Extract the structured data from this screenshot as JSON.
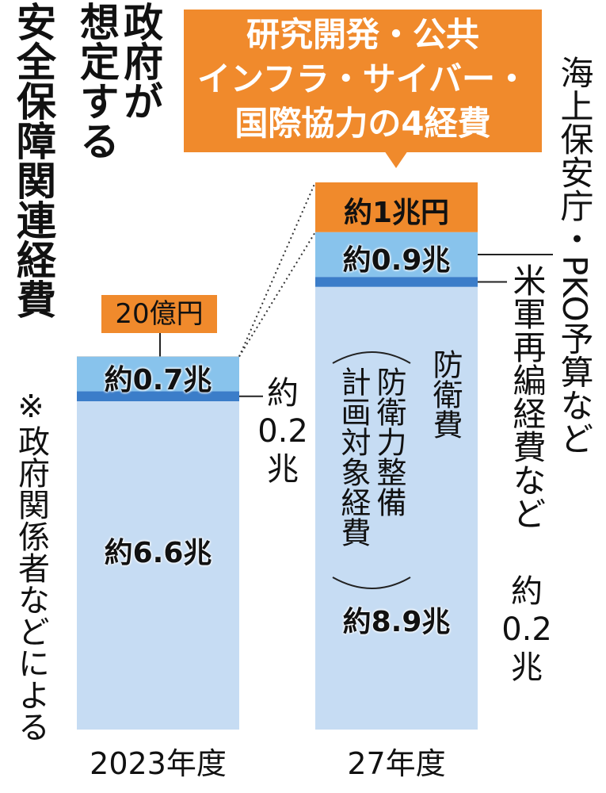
{
  "chart_data": {
    "type": "stacked-bar",
    "title_lines": [
      "政府が",
      "想定する",
      "安全保障関連経費"
    ],
    "source_note": "※政府関係者などによる",
    "categories": [
      "2023年度",
      "27年度"
    ],
    "series": [
      {
        "name": "防衛費",
        "name_note_lines": [
          "防衛力整備",
          "計画対象経費"
        ],
        "color": "#c6dcf3",
        "values": [
          6.6,
          8.9
        ],
        "value_labels": [
          "約6.6兆",
          "約8.9兆"
        ]
      },
      {
        "name": "米軍再編経費など",
        "color": "#3b7dc9",
        "values": [
          0.2,
          0.2
        ],
        "value_labels": [
          "約0.2兆",
          "約0.2兆"
        ]
      },
      {
        "name": "海上保安庁・PKO予算など",
        "color": "#88c3ec",
        "values": [
          0.7,
          0.9
        ],
        "value_labels": [
          "約0.7兆",
          "約0.9兆"
        ]
      },
      {
        "name_lines": [
          "研究開発・公共",
          "インフラ・サイバー・",
          "国際協力の4経費"
        ],
        "color": "#f08a2c",
        "values": [
          0.002,
          1
        ],
        "value_labels": [
          "20億円",
          "約1兆円"
        ]
      }
    ]
  }
}
